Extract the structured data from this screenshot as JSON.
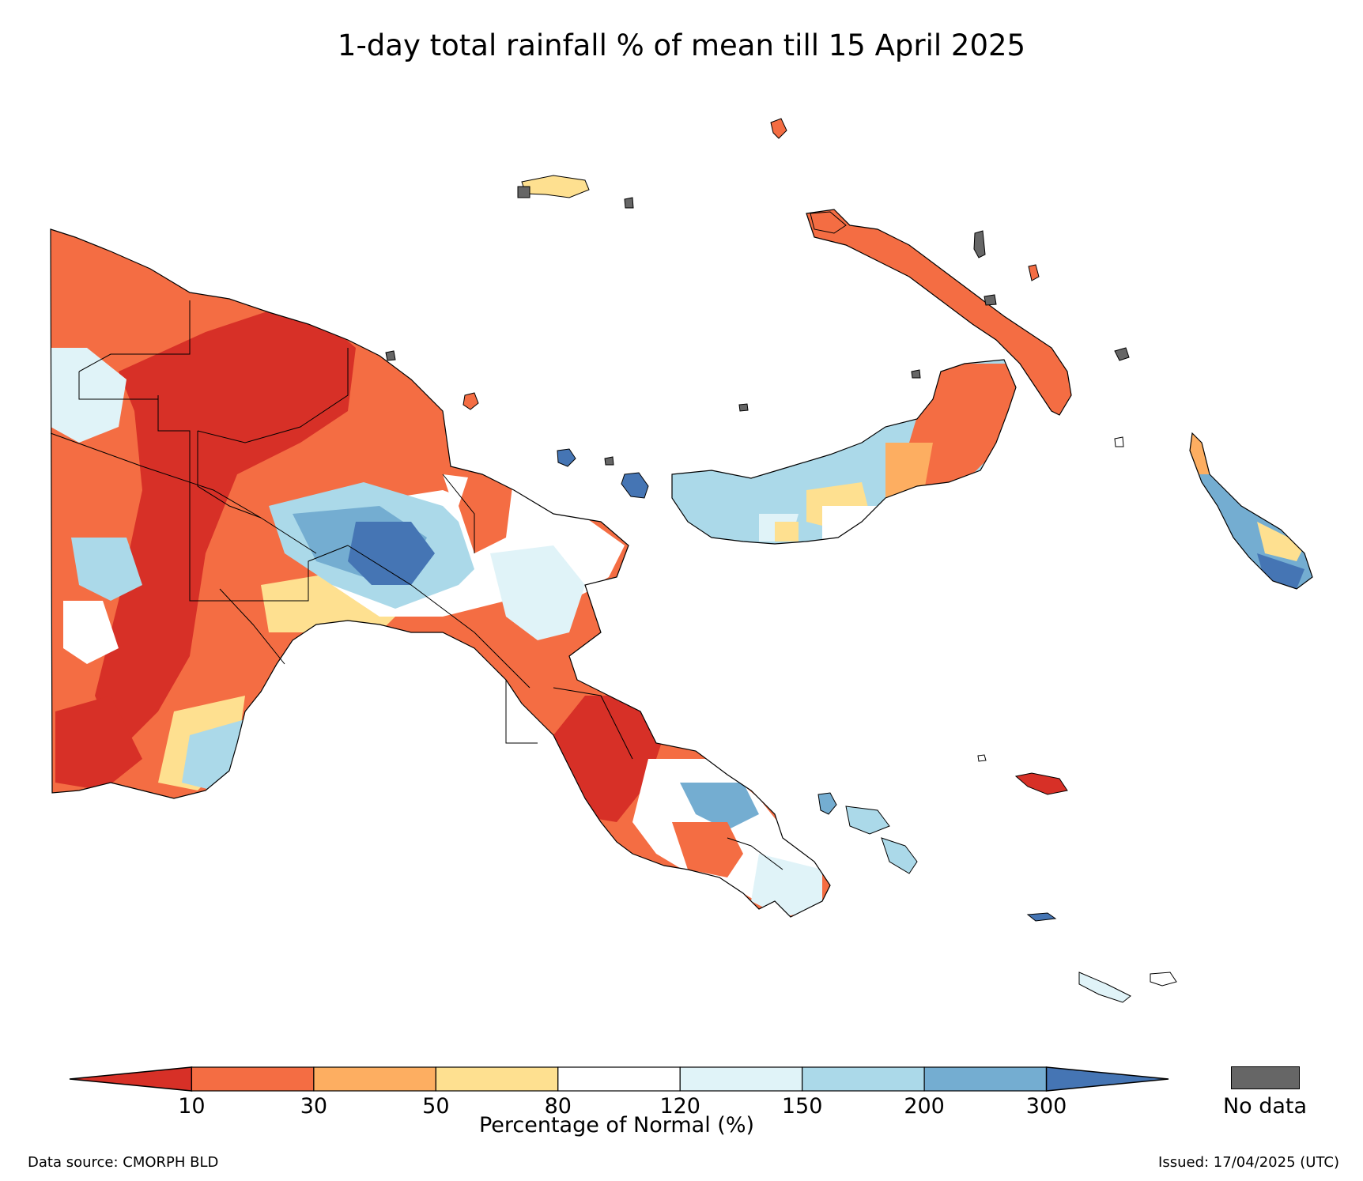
{
  "title": "1-day total rainfall % of mean till 15 April 2025",
  "colorbar": {
    "title": "Percentage of Normal (%)",
    "ticks": [
      "10",
      "30",
      "50",
      "80",
      "120",
      "150",
      "200",
      "300"
    ],
    "colors": [
      "#d73027",
      "#f46d43",
      "#fdae61",
      "#fee090",
      "#ffffff",
      "#e0f3f8",
      "#abd9e9",
      "#74add1",
      "#4575b4"
    ]
  },
  "no_data": {
    "label": "No data",
    "color": "#666666"
  },
  "footer": {
    "source": "Data source: CMORPH BLD",
    "issued": "Issued: 17/04/2025 (UTC)"
  }
}
